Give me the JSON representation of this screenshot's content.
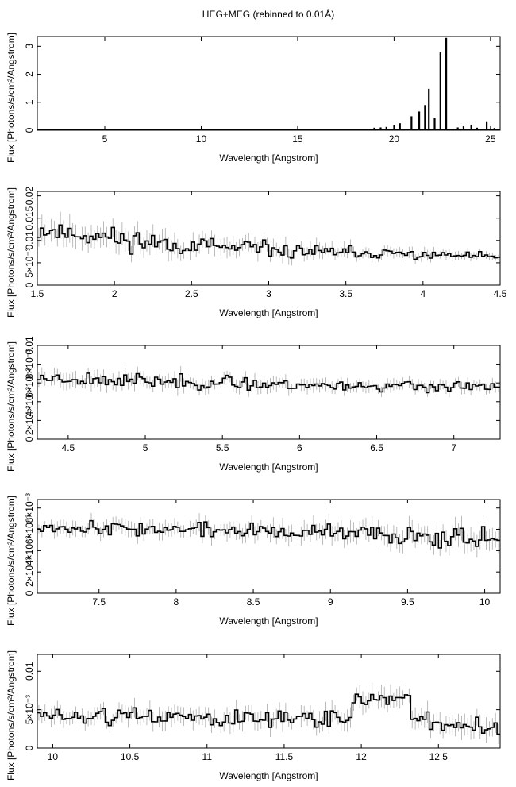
{
  "title": "HEG+MEG (rebinned to 0.01Å)",
  "chart_data": [
    {
      "type": "line",
      "xlabel": "Wavelength [Angstrom]",
      "ylabel": "Flux [Photons/s/cm²/Angstrom]",
      "xlim": [
        1.5,
        25.5
      ],
      "ylim": [
        0,
        3.35
      ],
      "xticks": [
        {
          "v": 5,
          "label": "5"
        },
        {
          "v": 10,
          "label": "10"
        },
        {
          "v": 15,
          "label": "15"
        },
        {
          "v": 20,
          "label": "20"
        },
        {
          "v": 25,
          "label": "25"
        }
      ],
      "yticks": [
        {
          "v": 0,
          "label": "0"
        },
        {
          "v": 1,
          "label": "1"
        },
        {
          "v": 2,
          "label": "2"
        },
        {
          "v": 3,
          "label": "3"
        }
      ],
      "baseline": 0.02,
      "lines": [
        {
          "x": 18.97,
          "y": 0.09
        },
        {
          "x": 19.3,
          "y": 0.1
        },
        {
          "x": 19.6,
          "y": 0.12
        },
        {
          "x": 20.0,
          "y": 0.18
        },
        {
          "x": 20.3,
          "y": 0.25
        },
        {
          "x": 20.9,
          "y": 0.5
        },
        {
          "x": 21.3,
          "y": 0.67
        },
        {
          "x": 21.6,
          "y": 0.9
        },
        {
          "x": 21.8,
          "y": 1.48
        },
        {
          "x": 22.1,
          "y": 0.45
        },
        {
          "x": 22.4,
          "y": 2.78
        },
        {
          "x": 22.7,
          "y": 3.3
        },
        {
          "x": 23.3,
          "y": 0.1
        },
        {
          "x": 23.6,
          "y": 0.14
        },
        {
          "x": 24.0,
          "y": 0.2
        },
        {
          "x": 24.3,
          "y": 0.09
        },
        {
          "x": 24.8,
          "y": 0.32
        },
        {
          "x": 25.2,
          "y": 0.08
        }
      ]
    },
    {
      "type": "line",
      "xlabel": "Wavelength [Angstrom]",
      "ylabel": "Flux [Photons/s/cm²/Angstrom]",
      "xlim": [
        1.5,
        4.5
      ],
      "ylim": [
        0,
        0.021
      ],
      "xticks": [
        {
          "v": 1.5,
          "label": "1.5"
        },
        {
          "v": 2,
          "label": "2"
        },
        {
          "v": 2.5,
          "label": "2.5"
        },
        {
          "v": 3,
          "label": "3"
        },
        {
          "v": 3.5,
          "label": "3.5"
        },
        {
          "v": 4,
          "label": "4"
        },
        {
          "v": 4.5,
          "label": "4.5"
        }
      ],
      "yticks": [
        {
          "v": 0,
          "label": "0"
        },
        {
          "v": 0.005,
          "label": "5×10⁻³"
        },
        {
          "v": 0.01,
          "label": "0.01"
        },
        {
          "v": 0.015,
          "label": "0.015"
        },
        {
          "v": 0.02,
          "label": "0.02"
        }
      ],
      "trend": [
        {
          "x": 1.5,
          "y": 0.0125
        },
        {
          "x": 2.0,
          "y": 0.0105
        },
        {
          "x": 2.5,
          "y": 0.0088
        },
        {
          "x": 3.0,
          "y": 0.0078
        },
        {
          "x": 3.5,
          "y": 0.0072
        },
        {
          "x": 4.0,
          "y": 0.0068
        },
        {
          "x": 4.5,
          "y": 0.0064
        }
      ],
      "bin_width": 0.02,
      "scatter_start": 0.0025,
      "scatter_end": 0.0006,
      "seed": 11
    },
    {
      "type": "line",
      "xlabel": "Wavelength [Angstrom]",
      "ylabel": "Flux [Photons/s/cm²/Angstrom]",
      "xlim": [
        4.3,
        7.3
      ],
      "ylim": [
        0,
        0.01
      ],
      "xticks": [
        {
          "v": 4.5,
          "label": "4.5"
        },
        {
          "v": 5,
          "label": "5"
        },
        {
          "v": 5.5,
          "label": "5.5"
        },
        {
          "v": 6,
          "label": "6"
        },
        {
          "v": 6.5,
          "label": "6.5"
        },
        {
          "v": 7,
          "label": "7"
        }
      ],
      "yticks": [
        {
          "v": 0,
          "label": "0"
        },
        {
          "v": 0.002,
          "label": "2×10⁻³"
        },
        {
          "v": 0.004,
          "label": "4×10⁻³"
        },
        {
          "v": 0.006,
          "label": "6×10⁻³"
        },
        {
          "v": 0.008,
          "label": "8×10⁻³"
        },
        {
          "v": 0.01,
          "label": "0.01"
        }
      ],
      "trend": [
        {
          "x": 4.3,
          "y": 0.0066
        },
        {
          "x": 5.0,
          "y": 0.0062
        },
        {
          "x": 6.0,
          "y": 0.0058
        },
        {
          "x": 7.3,
          "y": 0.0055
        }
      ],
      "bin_width": 0.02,
      "scatter_start": 0.0007,
      "scatter_end": 0.0005,
      "seed": 23
    },
    {
      "type": "line",
      "xlabel": "Wavelength [Angstrom]",
      "ylabel": "Flux [Photons/s/cm²/Angstrom]",
      "xlim": [
        7.1,
        10.1
      ],
      "ylim": [
        0,
        0.0088
      ],
      "xticks": [
        {
          "v": 7.5,
          "label": "7.5"
        },
        {
          "v": 8,
          "label": "8"
        },
        {
          "v": 8.5,
          "label": "8.5"
        },
        {
          "v": 9,
          "label": "9"
        },
        {
          "v": 9.5,
          "label": "9.5"
        },
        {
          "v": 10,
          "label": "10"
        }
      ],
      "yticks": [
        {
          "v": 0,
          "label": "0"
        },
        {
          "v": 0.002,
          "label": "2×10⁻³"
        },
        {
          "v": 0.004,
          "label": "4×10⁻³"
        },
        {
          "v": 0.006,
          "label": "6×10⁻³"
        },
        {
          "v": 0.008,
          "label": "8×10⁻³"
        }
      ],
      "trend": [
        {
          "x": 7.1,
          "y": 0.0063
        },
        {
          "x": 8.0,
          "y": 0.006
        },
        {
          "x": 9.0,
          "y": 0.0056
        },
        {
          "x": 10.1,
          "y": 0.0053
        }
      ],
      "bin_width": 0.02,
      "scatter_start": 0.0005,
      "scatter_end": 0.0009,
      "seed": 37
    },
    {
      "type": "line",
      "xlabel": "Wavelength [Angstrom]",
      "ylabel": "Flux [Photons/s/cm²/Angstrom]",
      "xlim": [
        9.9,
        12.9
      ],
      "ylim": [
        0,
        0.0122
      ],
      "xticks": [
        {
          "v": 10,
          "label": "10"
        },
        {
          "v": 10.5,
          "label": "10.5"
        },
        {
          "v": 11,
          "label": "11"
        },
        {
          "v": 11.5,
          "label": "11.5"
        },
        {
          "v": 12,
          "label": "12"
        },
        {
          "v": 12.5,
          "label": "12.5"
        }
      ],
      "yticks": [
        {
          "v": 0,
          "label": "0"
        },
        {
          "v": 0.005,
          "label": "5×10⁻³"
        },
        {
          "v": 0.01,
          "label": "0.01"
        }
      ],
      "trend": [
        {
          "x": 9.9,
          "y": 0.0042
        },
        {
          "x": 11.0,
          "y": 0.004
        },
        {
          "x": 11.9,
          "y": 0.0038
        },
        {
          "x": 11.95,
          "y": 0.0062
        },
        {
          "x": 12.3,
          "y": 0.0065
        },
        {
          "x": 12.35,
          "y": 0.0033
        },
        {
          "x": 12.9,
          "y": 0.0028
        }
      ],
      "bin_width": 0.02,
      "scatter_start": 0.0009,
      "scatter_end": 0.0012,
      "seed": 51
    }
  ]
}
